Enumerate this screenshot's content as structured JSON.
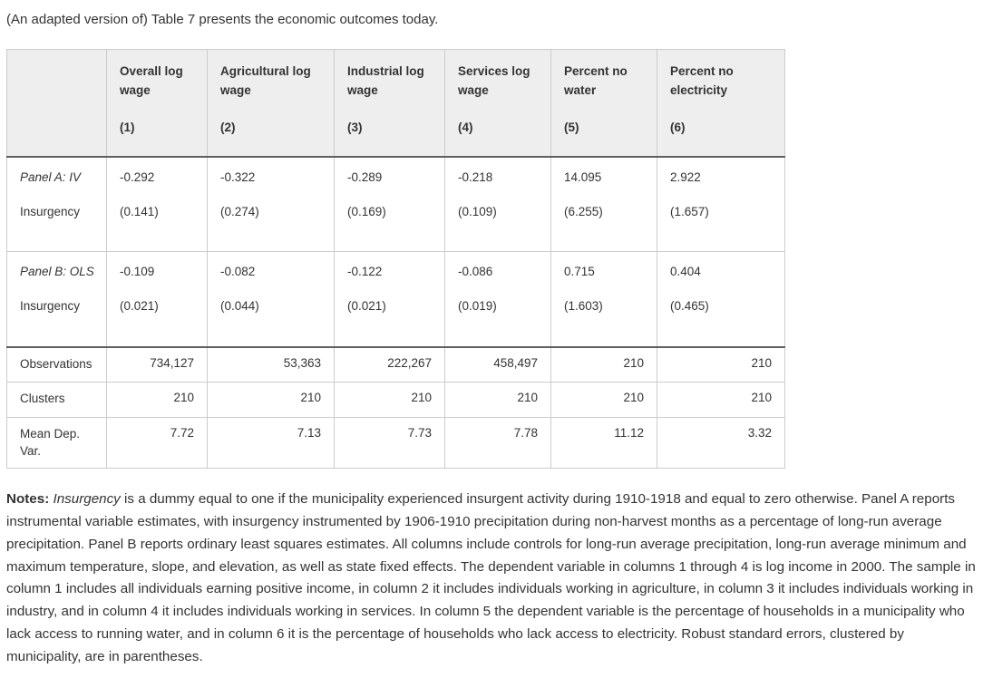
{
  "intro": "(An adapted version of) Table 7 presents the economic outcomes today.",
  "table": {
    "columns": [
      {
        "label": "",
        "num": ""
      },
      {
        "label": "Overall log wage",
        "num": "(1)"
      },
      {
        "label": "Agricultural log wage",
        "num": "(2)"
      },
      {
        "label": "Industrial log wage",
        "num": "(3)"
      },
      {
        "label": "Services log wage",
        "num": "(4)"
      },
      {
        "label": "Percent no water",
        "num": "(5)"
      },
      {
        "label": "Percent no electricity",
        "num": "(6)"
      }
    ],
    "panels": [
      {
        "panel_name": "Panel A: IV",
        "variable_name": "Insurgency",
        "coefficients": [
          "-0.292",
          "-0.322",
          "-0.289",
          "-0.218",
          "14.095",
          "2.922"
        ],
        "standard_errors": [
          "(0.141)",
          "(0.274)",
          "(0.169)",
          "(0.109)",
          "(6.255)",
          "(1.657)"
        ]
      },
      {
        "panel_name": "Panel B: OLS",
        "variable_name": "Insurgency",
        "coefficients": [
          "-0.109",
          "-0.082",
          "-0.122",
          "-0.086",
          "0.715",
          "0.404"
        ],
        "standard_errors": [
          "(0.021)",
          "(0.044)",
          "(0.021)",
          "(0.019)",
          "(1.603)",
          "(0.465)"
        ]
      }
    ],
    "stats": [
      {
        "label": "Observations",
        "values": [
          "734,127",
          "53,363",
          "222,267",
          "458,497",
          "210",
          "210"
        ]
      },
      {
        "label": "Clusters",
        "values": [
          "210",
          "210",
          "210",
          "210",
          "210",
          "210"
        ]
      },
      {
        "label": "Mean Dep. Var.",
        "values": [
          "7.72",
          "7.13",
          "7.73",
          "7.78",
          "11.12",
          "3.32"
        ]
      }
    ]
  },
  "notes": {
    "segments": [
      {
        "text": "Notes: ",
        "bold": true,
        "italic": false
      },
      {
        "text": "Insurgency",
        "bold": false,
        "italic": true
      },
      {
        "text": " is a dummy equal to one if the municipality experienced insurgent activity during 1910-1918 and equal to zero otherwise. Panel A reports instrumental variable estimates, with insurgency instrumented by 1906-1910 precipitation during non-harvest months as a percentage of long-run average precipitation. Panel B reports ordinary least squares estimates. All columns include controls for long-run average precipitation, long-run average minimum and maximum temperature, slope, and elevation, as well as state fixed effects. The dependent variable in columns 1 through 4 is log income in 2000. The sample in column 1 includes all individuals earning positive income, in column 2 it includes individuals working in agriculture, in column 3 it includes individuals working in industry, and in column 4 it includes individuals working in services. In column 5 the dependent variable is the percentage of households in a municipality who lack access to running water, and in column 6 it is the percentage of households who lack access to electricity. Robust standard errors, clustered by municipality, are in parentheses.",
        "bold": false,
        "italic": false
      }
    ]
  },
  "colors": {
    "text": "#333333",
    "header_background": "#eeeeee",
    "light_border": "#cccccc",
    "heavy_border": "#5f5f5f"
  }
}
